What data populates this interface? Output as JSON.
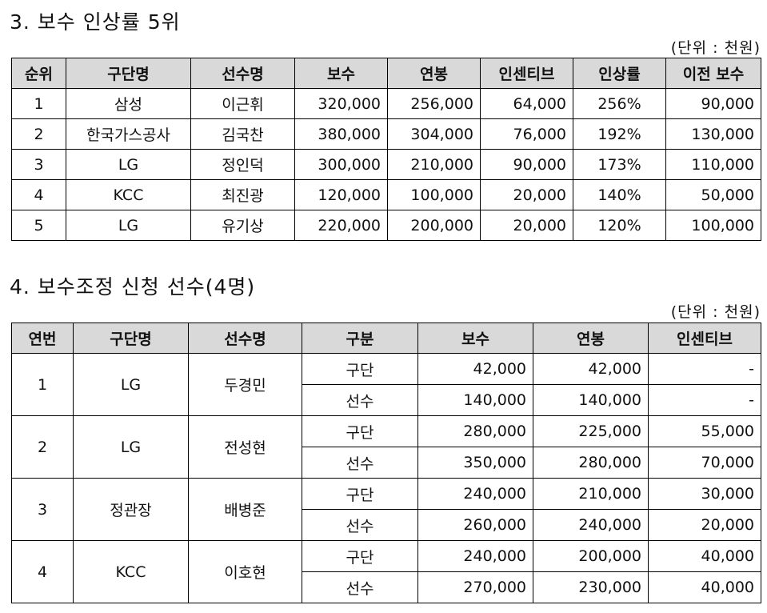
{
  "section1": {
    "title": "3. 보수 인상률 5위",
    "unit": "(단위 : 천원)",
    "headers": [
      "순위",
      "구단명",
      "선수명",
      "보수",
      "연봉",
      "인센티브",
      "인상률",
      "이전 보수"
    ],
    "rows": [
      [
        "1",
        "삼성",
        "이근휘",
        "320,000",
        "256,000",
        "64,000",
        "256%",
        "90,000"
      ],
      [
        "2",
        "한국가스공사",
        "김국찬",
        "380,000",
        "304,000",
        "76,000",
        "192%",
        "130,000"
      ],
      [
        "3",
        "LG",
        "정인덕",
        "300,000",
        "210,000",
        "90,000",
        "173%",
        "110,000"
      ],
      [
        "4",
        "KCC",
        "최진광",
        "120,000",
        "100,000",
        "20,000",
        "140%",
        "50,000"
      ],
      [
        "5",
        "LG",
        "유기상",
        "220,000",
        "200,000",
        "20,000",
        "120%",
        "100,000"
      ]
    ]
  },
  "section2": {
    "title": "4. 보수조정 신청 선수(4명)",
    "unit": "(단위 : 천원)",
    "headers": [
      "연번",
      "구단명",
      "선수명",
      "구분",
      "보수",
      "연봉",
      "인센티브"
    ],
    "groups": [
      {
        "no": "1",
        "team": "LG",
        "player": "두경민",
        "rows": [
          [
            "구단",
            "42,000",
            "42,000",
            "-"
          ],
          [
            "선수",
            "140,000",
            "140,000",
            "-"
          ]
        ]
      },
      {
        "no": "2",
        "team": "LG",
        "player": "전성현",
        "rows": [
          [
            "구단",
            "280,000",
            "225,000",
            "55,000"
          ],
          [
            "선수",
            "350,000",
            "280,000",
            "70,000"
          ]
        ]
      },
      {
        "no": "3",
        "team": "정관장",
        "player": "배병준",
        "rows": [
          [
            "구단",
            "240,000",
            "210,000",
            "30,000"
          ],
          [
            "선수",
            "260,000",
            "240,000",
            "20,000"
          ]
        ]
      },
      {
        "no": "4",
        "team": "KCC",
        "player": "이호현",
        "rows": [
          [
            "구단",
            "240,000",
            "200,000",
            "40,000"
          ],
          [
            "선수",
            "270,000",
            "230,000",
            "40,000"
          ]
        ]
      }
    ]
  }
}
